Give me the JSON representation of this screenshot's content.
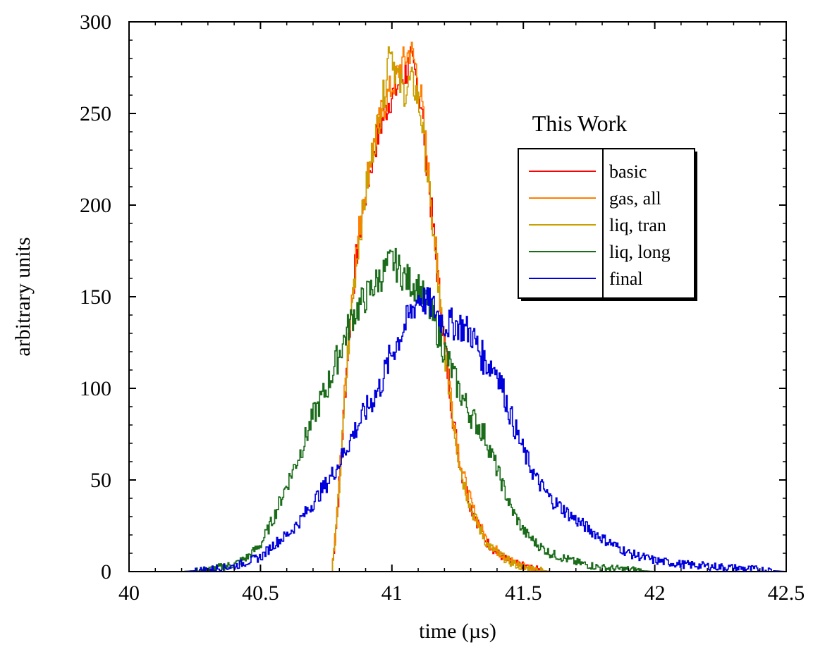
{
  "chart_data": {
    "type": "line",
    "title": "",
    "xlabel": "time (µs)",
    "ylabel": "arbitrary units",
    "xlim": [
      40,
      42.5
    ],
    "ylim": [
      0,
      300
    ],
    "xticks": [
      40,
      40.5,
      41,
      41.5,
      42,
      42.5
    ],
    "xtick_labels": [
      "40",
      "40.5",
      "41",
      "41.5",
      "42",
      "42.5"
    ],
    "yticks": [
      0,
      50,
      100,
      150,
      200,
      250,
      300
    ],
    "ytick_labels": [
      "0",
      "50",
      "100",
      "150",
      "200",
      "250",
      "300"
    ],
    "grid": false,
    "legend": {
      "title": "This Work",
      "position": "upper-right"
    },
    "series": [
      {
        "name": "basic",
        "color": "#ff0000",
        "x": [
          40.77,
          40.79,
          40.81,
          40.83,
          40.85,
          40.87,
          40.89,
          40.91,
          40.93,
          40.95,
          40.97,
          40.99,
          41.01,
          41.03,
          41.05,
          41.07,
          41.09,
          41.11,
          41.13,
          41.15,
          41.17,
          41.19,
          41.21,
          41.23,
          41.25,
          41.27,
          41.3,
          41.33,
          41.36,
          41.4,
          41.45,
          41.5,
          41.55,
          41.6
        ],
        "y": [
          0,
          30,
          75,
          120,
          155,
          180,
          200,
          215,
          230,
          240,
          250,
          258,
          262,
          268,
          272,
          278,
          270,
          255,
          225,
          195,
          165,
          135,
          110,
          85,
          65,
          50,
          35,
          25,
          16,
          10,
          5,
          3,
          1,
          0
        ]
      },
      {
        "name": "gas, all",
        "color": "#ff7f00",
        "x": [
          40.77,
          40.79,
          40.81,
          40.83,
          40.85,
          40.87,
          40.89,
          40.91,
          40.93,
          40.95,
          40.97,
          40.99,
          41.01,
          41.03,
          41.05,
          41.07,
          41.09,
          41.11,
          41.13,
          41.15,
          41.17,
          41.19,
          41.21,
          41.23,
          41.25,
          41.27,
          41.3,
          41.33,
          41.36,
          41.4,
          41.45,
          41.5,
          41.55,
          41.6
        ],
        "y": [
          0,
          32,
          78,
          122,
          158,
          182,
          205,
          220,
          232,
          245,
          255,
          262,
          268,
          275,
          280,
          285,
          275,
          258,
          228,
          198,
          168,
          138,
          112,
          88,
          68,
          52,
          37,
          26,
          17,
          11,
          6,
          3,
          1,
          0
        ]
      },
      {
        "name": "liq, tran",
        "color": "#c8a000",
        "x": [
          40.77,
          40.79,
          40.81,
          40.83,
          40.85,
          40.87,
          40.89,
          40.91,
          40.93,
          40.95,
          40.97,
          40.99,
          41.01,
          41.03,
          41.05,
          41.07,
          41.09,
          41.11,
          41.13,
          41.15,
          41.17,
          41.19,
          41.21,
          41.23,
          41.25,
          41.27,
          41.3,
          41.33,
          41.36,
          41.4,
          41.45,
          41.5,
          41.55,
          41.6
        ],
        "y": [
          0,
          28,
          72,
          118,
          152,
          178,
          198,
          218,
          234,
          248,
          262,
          290,
          275,
          265,
          262,
          268,
          262,
          248,
          222,
          192,
          162,
          132,
          108,
          84,
          64,
          49,
          34,
          24,
          15,
          10,
          5,
          2,
          1,
          0
        ]
      },
      {
        "name": "liq, long",
        "color": "#1a6b1a",
        "x": [
          40.2,
          40.3,
          40.4,
          40.45,
          40.5,
          40.55,
          40.6,
          40.65,
          40.7,
          40.75,
          40.8,
          40.85,
          40.9,
          40.95,
          41.0,
          41.05,
          41.1,
          41.15,
          41.2,
          41.25,
          41.3,
          41.35,
          41.4,
          41.45,
          41.5,
          41.55,
          41.6,
          41.7,
          41.8,
          41.9,
          42.0
        ],
        "y": [
          0,
          1,
          4,
          8,
          15,
          30,
          48,
          65,
          85,
          100,
          120,
          140,
          150,
          160,
          170,
          160,
          155,
          140,
          120,
          100,
          85,
          75,
          55,
          35,
          22,
          15,
          10,
          5,
          2,
          1,
          0
        ]
      },
      {
        "name": "final",
        "color": "#0000dd",
        "x": [
          40.2,
          40.3,
          40.4,
          40.5,
          40.55,
          40.6,
          40.65,
          40.7,
          40.75,
          40.8,
          40.85,
          40.9,
          40.95,
          41.0,
          41.05,
          41.1,
          41.15,
          41.2,
          41.25,
          41.3,
          41.35,
          41.4,
          41.45,
          41.5,
          41.55,
          41.6,
          41.7,
          41.8,
          41.9,
          42.0,
          42.1,
          42.2,
          42.3,
          42.4,
          42.5
        ],
        "y": [
          0,
          1,
          3,
          8,
          15,
          20,
          28,
          38,
          48,
          60,
          75,
          88,
          100,
          120,
          135,
          150,
          145,
          135,
          135,
          130,
          115,
          110,
          85,
          65,
          50,
          40,
          28,
          18,
          10,
          6,
          4,
          3,
          2,
          1,
          0
        ]
      }
    ]
  }
}
